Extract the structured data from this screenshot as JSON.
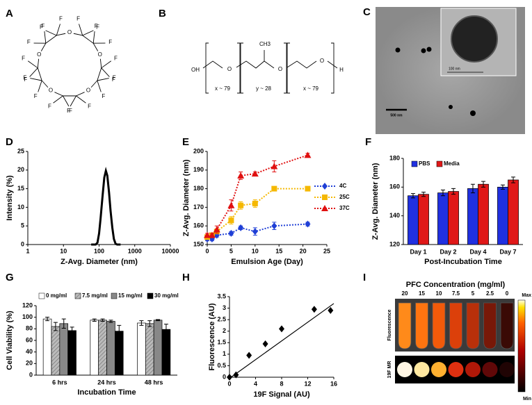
{
  "panel_a": {
    "label": "A",
    "oxygens": [
      "O",
      "O",
      "O",
      "O",
      "O"
    ],
    "fluorines": [
      "F",
      "F",
      "F",
      "F",
      "F",
      "F",
      "F",
      "F",
      "F",
      "F",
      "F",
      "F",
      "F",
      "F",
      "F",
      "F",
      "F",
      "F",
      "F",
      "F"
    ]
  },
  "panel_b": {
    "label": "B",
    "end_left": "OH",
    "oxygens": [
      "O",
      "O",
      "O"
    ],
    "methyl": "CH3",
    "end_right": "H",
    "repeats": [
      "x ~ 79",
      "y ~ 28",
      "x ~ 79"
    ]
  },
  "panel_c": {
    "label": "C",
    "scale_bar": "500 nm",
    "inset_scale_bar": "100 nm"
  },
  "chart_data": [
    {
      "label": "D",
      "type": "line",
      "xlabel": "Z-Avg. Diameter (nm)",
      "ylabel": "Intensity (%)",
      "xscale": "log",
      "x": [
        60,
        80,
        90,
        100,
        110,
        125,
        140,
        155,
        170,
        190,
        210,
        235,
        260,
        290,
        320,
        400
      ],
      "values": [
        0,
        0,
        0.5,
        3,
        7,
        13,
        18,
        19.8,
        18.5,
        14,
        9,
        4.5,
        1.5,
        0.2,
        0,
        0
      ],
      "color": "#000000",
      "xlim": [
        1,
        10000
      ],
      "xticks": [
        1,
        10,
        100,
        1000,
        10000
      ],
      "ylim": [
        0,
        25
      ],
      "yticks": [
        0,
        5,
        10,
        15,
        20,
        25
      ]
    },
    {
      "label": "E",
      "type": "line",
      "xlabel": "Emulsion Age (Day)",
      "ylabel": "Z-Avg. Diameter (nm)",
      "line_style": "dotted",
      "legend": "right",
      "x": [
        0,
        1,
        2,
        5,
        7,
        10,
        14,
        21
      ],
      "series": [
        {
          "name": "4C",
          "color": "#1f3fd6",
          "marker": "diamond",
          "values": [
            153,
            153,
            155,
            156,
            159,
            157,
            160,
            161
          ],
          "errors": [
            1,
            1,
            1,
            1,
            1,
            2,
            2,
            1
          ]
        },
        {
          "name": "25C",
          "color": "#f5b800",
          "marker": "square",
          "values": [
            154,
            155,
            157,
            163,
            171,
            172,
            180,
            180
          ],
          "errors": [
            1,
            1,
            1,
            2,
            2,
            2,
            1,
            1
          ]
        },
        {
          "name": "37C",
          "color": "#e01010",
          "marker": "triangle",
          "values": [
            155,
            155,
            158,
            171,
            187,
            188,
            192,
            198
          ],
          "errors": [
            1,
            1,
            2,
            3,
            2,
            1,
            3,
            1
          ]
        }
      ],
      "xlim": [
        0,
        25
      ],
      "xticks": [
        0,
        5,
        10,
        15,
        20,
        25
      ],
      "ylim": [
        150,
        200
      ],
      "yticks": [
        150,
        160,
        170,
        180,
        190,
        200
      ]
    },
    {
      "label": "F",
      "type": "bar",
      "xlabel": "Post-Incubation Time",
      "ylabel": "Z-Avg. Diameter (nm)",
      "legend": "top-left",
      "categories": [
        "Day 1",
        "Day 2",
        "Day 4",
        "Day 7"
      ],
      "series": [
        {
          "name": "PBS",
          "color": "#2030e0",
          "values": [
            154,
            156,
            159,
            160
          ],
          "errors": [
            1.5,
            2,
            3,
            1.5
          ]
        },
        {
          "name": "Media",
          "color": "#e01818",
          "values": [
            155,
            157,
            162,
            165
          ],
          "errors": [
            1.5,
            2,
            2,
            2
          ]
        }
      ],
      "ylim": [
        120,
        180
      ],
      "yticks": [
        120,
        140,
        160,
        180
      ]
    },
    {
      "label": "G",
      "type": "bar",
      "xlabel": "Incubation Time",
      "ylabel": "Cell Viability (%)",
      "legend": "top",
      "categories": [
        "6 hrs",
        "24 hrs",
        "48 hrs"
      ],
      "series": [
        {
          "name": "0 mg/ml",
          "color": "#ffffff",
          "values": [
            97,
            95,
            90
          ],
          "errors": [
            3,
            2,
            4
          ]
        },
        {
          "name": "7.5 mg/ml",
          "color": "#bbbbbb",
          "pattern": "hatch",
          "values": [
            84,
            95,
            89
          ],
          "errors": [
            7,
            2,
            5
          ]
        },
        {
          "name": "15 mg/ml",
          "color": "#888888",
          "values": [
            89,
            93,
            95
          ],
          "errors": [
            8,
            2,
            1
          ]
        },
        {
          "name": "30 mg/ml",
          "color": "#000000",
          "values": [
            77,
            76,
            79
          ],
          "errors": [
            6,
            10,
            9
          ]
        }
      ],
      "ylim": [
        0,
        120
      ],
      "yticks": [
        0,
        20,
        40,
        60,
        80,
        100,
        120
      ]
    },
    {
      "label": "H",
      "type": "scatter",
      "xlabel": "19F Signal (AU)",
      "ylabel": "Fluorescence (AU)",
      "color": "#000000",
      "x": [
        0,
        1,
        3,
        5.5,
        8,
        13,
        15.5
      ],
      "values": [
        0,
        0.1,
        0.95,
        1.45,
        2.1,
        2.95,
        2.9
      ],
      "trendline": {
        "x": [
          0,
          16
        ],
        "y": [
          -0.05,
          3.2
        ]
      },
      "xlim": [
        0,
        16
      ],
      "xticks": [
        0,
        4,
        8,
        12,
        16
      ],
      "ylim": [
        0,
        3.5
      ],
      "yticks": [
        0,
        0.5,
        1,
        1.5,
        2,
        2.5,
        3,
        3.5
      ]
    }
  ],
  "panel_i": {
    "label": "I",
    "title": "PFC Concentration (mg/ml)",
    "concentrations": [
      "20",
      "15",
      "10",
      "7.5",
      "5",
      "2.5",
      "0"
    ],
    "rows": [
      "Fluorescence",
      "19F MR"
    ],
    "colorbar_max": "Max",
    "colorbar_min": "Min"
  }
}
